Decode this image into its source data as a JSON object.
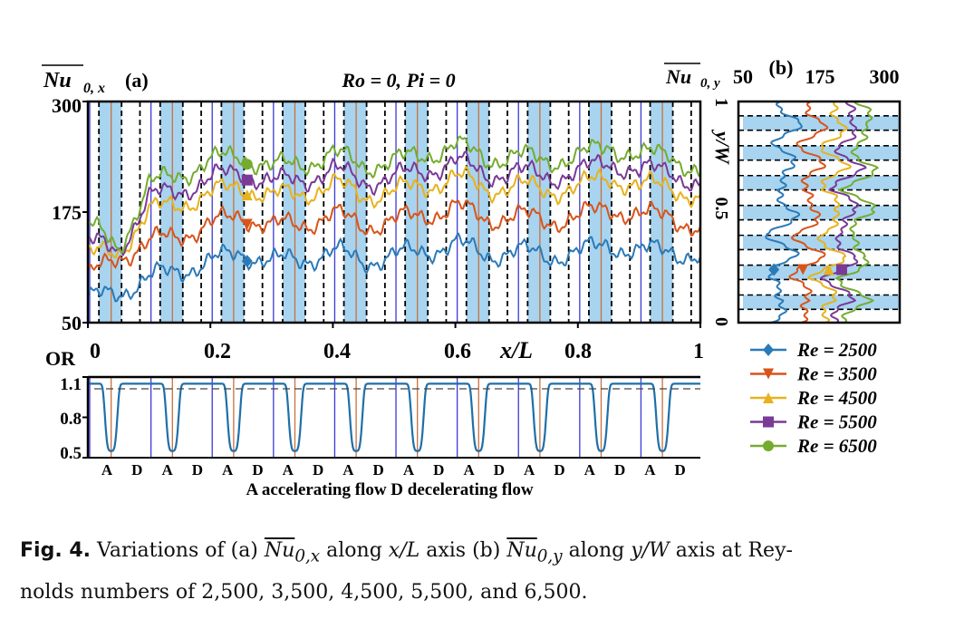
{
  "panel_a": {
    "label": "(a)",
    "ylabel": "Nu",
    "ylabel_sub": "0, x",
    "title": "Ro = 0, Pi = 0",
    "xlabel": "x/L",
    "ytick_labels": [
      "300",
      "175",
      "50"
    ],
    "xtick_labels": [
      "0",
      "0.2",
      "0.4",
      "0.6",
      "0.8",
      "1"
    ]
  },
  "panel_b": {
    "label": "(b)",
    "xlabel": "Nu",
    "xlabel_sub": "0, y",
    "xtick_labels": [
      "50",
      "175",
      "300"
    ],
    "ylabel": "y/W",
    "ytick_labels": [
      "1",
      "0.5",
      "0"
    ]
  },
  "or_panel": {
    "ylabel": "OR",
    "ytick_labels": [
      "1.1",
      "0.8",
      "0.5"
    ],
    "flow_labels": [
      "A",
      "D",
      "A",
      "D",
      "A",
      "D",
      "A",
      "D",
      "A",
      "D",
      "A",
      "D",
      "A",
      "D",
      "A",
      "D",
      "A",
      "D",
      "A",
      "D"
    ],
    "flow_note": "A accelerating flow  D decelerating flow"
  },
  "legend": [
    "Re = 2500",
    "Re = 3500",
    "Re = 4500",
    "Re = 5500",
    "Re = 6500"
  ],
  "caption": {
    "label": "Fig. 4.",
    "part1": "Variations of (a)",
    "sym_a": "Nu",
    "sub_a": "0,x",
    "part2": "along",
    "axis_a": "x/L",
    "part3": "axis (b)",
    "sym_b": "Nu",
    "sub_b": "0,y",
    "part4": "along",
    "axis_b": "y/W",
    "part5": "axis at Rey-",
    "line2": "nolds numbers of 2,500, 3,500, 4,500, 5,500, and 6,500."
  },
  "colors": {
    "re2500": "#2a7ab8",
    "re3500": "#d9541a",
    "re4500": "#e8b21c",
    "re5500": "#7a3a96",
    "re6500": "#75ac2f",
    "band": "#a8d4f0",
    "blue_line": "#3a3ad8",
    "orange_line": "#c9703a",
    "or_curve": "#1f6fa8"
  },
  "chart_data": [
    {
      "type": "line",
      "title": "Ro = 0, Pi = 0",
      "xlabel": "x/L",
      "ylabel": "Nu0,x",
      "xlim": [
        0,
        1
      ],
      "ylim": [
        50,
        300
      ],
      "series": [
        {
          "name": "Re = 2500",
          "x": [
            0,
            0.05,
            0.1,
            0.15,
            0.2,
            0.25,
            0.3,
            0.35,
            0.4,
            0.45,
            0.5,
            0.55,
            0.6,
            0.65,
            0.7,
            0.75,
            0.8,
            0.85,
            0.9,
            0.95,
            1
          ],
          "values": [
            75,
            85,
            100,
            110,
            118,
            130,
            118,
            122,
            130,
            120,
            125,
            132,
            138,
            128,
            130,
            126,
            128,
            140,
            128,
            135,
            120
          ]
        },
        {
          "name": "Re = 3500",
          "x": [
            0,
            0.05,
            0.1,
            0.15,
            0.2,
            0.25,
            0.3,
            0.35,
            0.4,
            0.45,
            0.5,
            0.55,
            0.6,
            0.65,
            0.7,
            0.75,
            0.8,
            0.85,
            0.9,
            0.95,
            1
          ],
          "values": [
            100,
            125,
            140,
            150,
            160,
            172,
            158,
            162,
            172,
            160,
            165,
            172,
            180,
            168,
            170,
            166,
            168,
            182,
            168,
            175,
            150
          ]
        },
        {
          "name": "Re = 4500",
          "x": [
            0,
            0.05,
            0.1,
            0.15,
            0.2,
            0.25,
            0.3,
            0.35,
            0.4,
            0.45,
            0.5,
            0.55,
            0.6,
            0.65,
            0.7,
            0.75,
            0.8,
            0.85,
            0.9,
            0.95,
            1
          ],
          "values": [
            125,
            130,
            175,
            185,
            195,
            205,
            192,
            196,
            206,
            194,
            198,
            205,
            214,
            202,
            204,
            200,
            202,
            216,
            202,
            208,
            185
          ]
        },
        {
          "name": "Re = 5500",
          "x": [
            0,
            0.05,
            0.1,
            0.15,
            0.2,
            0.25,
            0.3,
            0.35,
            0.4,
            0.45,
            0.5,
            0.55,
            0.6,
            0.65,
            0.7,
            0.75,
            0.8,
            0.85,
            0.9,
            0.95,
            1
          ],
          "values": [
            140,
            132,
            190,
            200,
            212,
            222,
            208,
            212,
            222,
            210,
            214,
            222,
            232,
            218,
            220,
            216,
            218,
            234,
            218,
            226,
            200
          ]
        },
        {
          "name": "Re = 6500",
          "x": [
            0,
            0.05,
            0.1,
            0.15,
            0.2,
            0.25,
            0.3,
            0.35,
            0.4,
            0.45,
            0.5,
            0.55,
            0.6,
            0.65,
            0.7,
            0.75,
            0.8,
            0.85,
            0.9,
            0.95,
            1
          ],
          "values": [
            160,
            135,
            205,
            218,
            232,
            240,
            225,
            230,
            240,
            228,
            232,
            240,
            250,
            236,
            238,
            234,
            236,
            252,
            236,
            244,
            215
          ]
        }
      ]
    },
    {
      "type": "line",
      "xlabel": "Nu0,y",
      "ylabel": "y/W",
      "xlim": [
        50,
        300
      ],
      "ylim": [
        0,
        1
      ],
      "series": [
        {
          "name": "Re = 2500",
          "y": [
            0,
            0.1,
            0.2,
            0.3,
            0.4,
            0.5,
            0.6,
            0.7,
            0.8,
            0.9,
            1
          ],
          "values": [
            100,
            125,
            95,
            135,
            100,
            140,
            105,
            138,
            110,
            140,
            115
          ]
        },
        {
          "name": "Re = 3500",
          "y": [
            0,
            0.1,
            0.2,
            0.3,
            0.4,
            0.5,
            0.6,
            0.7,
            0.8,
            0.9,
            1
          ],
          "values": [
            140,
            165,
            135,
            175,
            140,
            180,
            145,
            178,
            150,
            180,
            155
          ]
        },
        {
          "name": "Re = 4500",
          "y": [
            0,
            0.1,
            0.2,
            0.3,
            0.4,
            0.5,
            0.6,
            0.7,
            0.8,
            0.9,
            1
          ],
          "values": [
            175,
            200,
            170,
            210,
            175,
            215,
            180,
            212,
            185,
            215,
            190
          ]
        },
        {
          "name": "Re = 5500",
          "y": [
            0,
            0.1,
            0.2,
            0.3,
            0.4,
            0.5,
            0.6,
            0.7,
            0.8,
            0.9,
            1
          ],
          "values": [
            195,
            222,
            190,
            232,
            195,
            238,
            200,
            235,
            205,
            238,
            210
          ]
        },
        {
          "name": "Re = 6500",
          "y": [
            0,
            0.1,
            0.2,
            0.3,
            0.4,
            0.5,
            0.6,
            0.7,
            0.8,
            0.9,
            1
          ],
          "values": [
            215,
            245,
            210,
            255,
            215,
            260,
            220,
            258,
            225,
            262,
            230
          ]
        }
      ]
    },
    {
      "type": "line",
      "xlabel": "x/L",
      "ylabel": "OR",
      "xlim": [
        0,
        1
      ],
      "ylim": [
        0.5,
        1.1
      ],
      "series": [
        {
          "x": [
            0,
            0.03,
            0.045,
            0.06,
            0.09,
            0.12
          ],
          "values": [
            1.05,
            1.05,
            0.55,
            1.05,
            1.05,
            1.05
          ]
        }
      ]
    }
  ]
}
